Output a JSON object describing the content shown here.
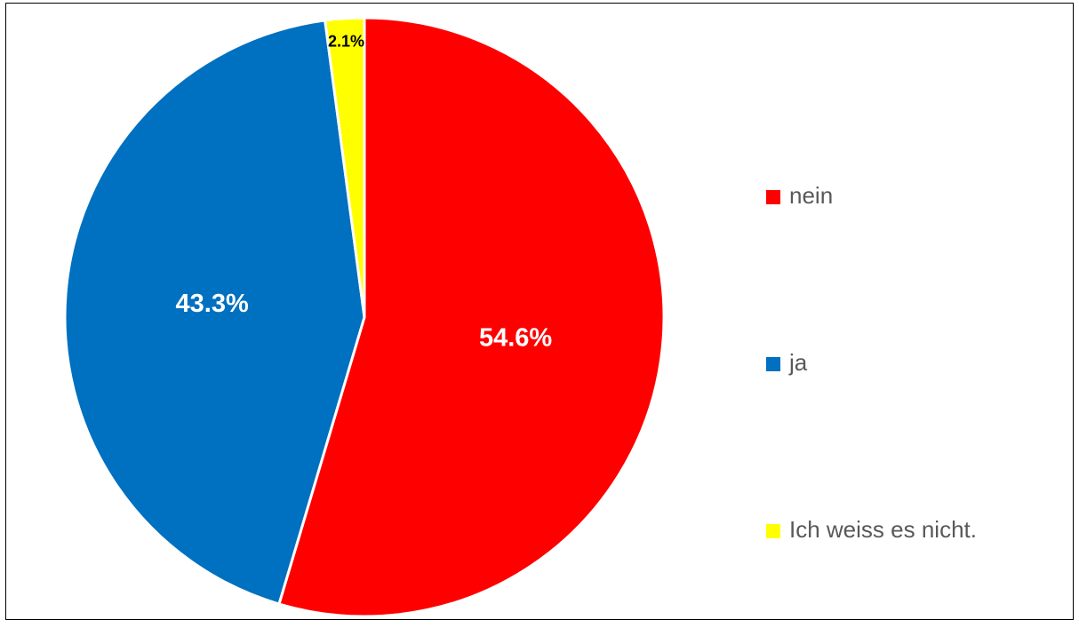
{
  "chart_data": {
    "type": "pie",
    "categories": [
      "nein",
      "ja",
      "Ich weiss es nicht."
    ],
    "values": [
      54.6,
      43.3,
      2.1
    ],
    "value_labels": [
      "54.6%",
      "43.3%",
      "2.1%"
    ],
    "colors": [
      "#ff0000",
      "#0070c0",
      "#ffff00"
    ],
    "legend": "right"
  }
}
